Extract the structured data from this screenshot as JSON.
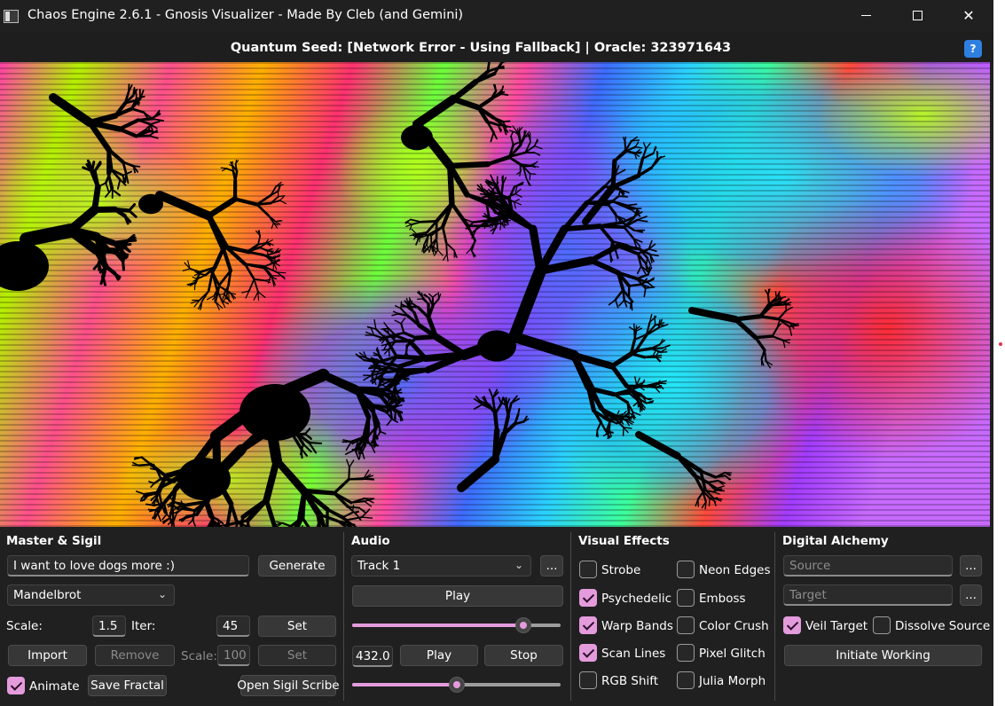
{
  "window": {
    "title": "Chaos Engine 2.6.1 - Gnosis Visualizer - Made By Cleb (and Gemini)"
  },
  "seed_bar": {
    "text": "Quantum Seed: [Network Error - Using Fallback]  |  Oracle: 323971643",
    "help_label": "?"
  },
  "master_sigil": {
    "title": "Master & Sigil",
    "intent_value": "I want to love dogs more :)",
    "generate_label": "Generate",
    "fractal_type": "Mandelbrot",
    "scale_label": "Scale:",
    "scale_value": "1.5",
    "iter_label": "Iter:",
    "iter_value": "45",
    "set_label": "Set",
    "import_label": "Import",
    "remove_label": "Remove",
    "sigil_scale_label": "Scale:",
    "sigil_scale_value": "100",
    "sigil_set_label": "Set",
    "animate_label": "Animate",
    "animate_checked": true,
    "save_fractal_label": "Save Fractal",
    "open_scribe_label": "Open Sigil Scribe"
  },
  "audio": {
    "title": "Audio",
    "track": "Track 1",
    "browse_label": "...",
    "play_label": "Play",
    "track_slider_level": 0.82,
    "frequency_value": "432.0",
    "tone_play_label": "Play",
    "stop_label": "Stop",
    "tone_slider_level": 0.5
  },
  "visual_effects": {
    "title": "Visual Effects",
    "items": [
      {
        "label": "Strobe",
        "checked": false
      },
      {
        "label": "Neon Edges",
        "checked": false
      },
      {
        "label": "Psychedelic",
        "checked": true
      },
      {
        "label": "Emboss",
        "checked": false
      },
      {
        "label": "Warp Bands",
        "checked": true
      },
      {
        "label": "Color Crush",
        "checked": false
      },
      {
        "label": "Scan Lines",
        "checked": true
      },
      {
        "label": "Pixel Glitch",
        "checked": false
      },
      {
        "label": "RGB Shift",
        "checked": false
      },
      {
        "label": "Julia Morph",
        "checked": false
      }
    ]
  },
  "digital_alchemy": {
    "title": "Digital Alchemy",
    "source_placeholder": "Source",
    "target_placeholder": "Target",
    "browse_label": "...",
    "veil_target_label": "Veil Target",
    "veil_target_checked": true,
    "dissolve_source_label": "Dissolve Source",
    "dissolve_source_checked": false,
    "initiate_label": "Initiate Working"
  },
  "icons": {
    "app": "app-icon",
    "minimize": "minimize-icon",
    "maximize": "maximize-icon",
    "close": "close-icon",
    "help": "help-icon",
    "dropdown": "chevron-down-icon"
  },
  "colors": {
    "accent": "#e49bdc",
    "help_button": "#2f7fe0",
    "background": "#202020"
  }
}
